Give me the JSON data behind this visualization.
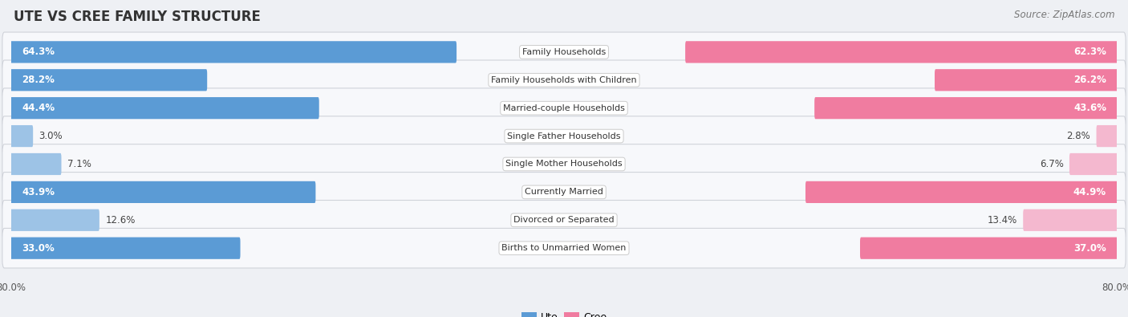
{
  "title": "UTE VS CREE FAMILY STRUCTURE",
  "source": "Source: ZipAtlas.com",
  "categories": [
    "Family Households",
    "Family Households with Children",
    "Married-couple Households",
    "Single Father Households",
    "Single Mother Households",
    "Currently Married",
    "Divorced or Separated",
    "Births to Unmarried Women"
  ],
  "ute_values": [
    64.3,
    28.2,
    44.4,
    3.0,
    7.1,
    43.9,
    12.6,
    33.0
  ],
  "cree_values": [
    62.3,
    26.2,
    43.6,
    2.8,
    6.7,
    44.9,
    13.4,
    37.0
  ],
  "ute_color_strong": "#5b9bd5",
  "ute_color_light": "#9dc3e6",
  "cree_color_strong": "#f07ca0",
  "cree_color_light": "#f4b8cf",
  "bg_color": "#eef0f4",
  "row_bg_even": "#f5f6f9",
  "row_bg_odd": "#eaecf0",
  "axis_max": 80.0,
  "label_fontsize": 8.5,
  "cat_fontsize": 8.0,
  "title_fontsize": 12,
  "source_fontsize": 8.5,
  "value_threshold_strong": 20.0
}
